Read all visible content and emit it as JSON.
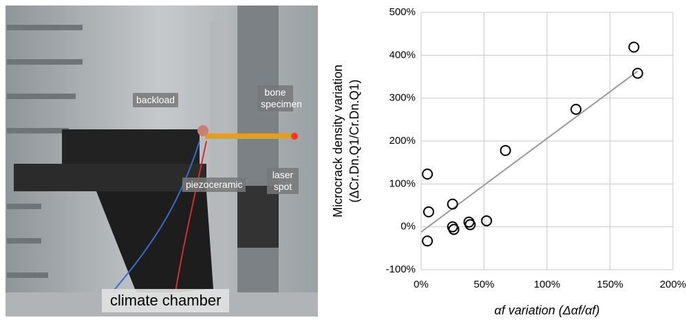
{
  "photo": {
    "labels": [
      "backload",
      "bone specimen",
      "piezoceramic",
      "laser spot",
      "climate chamber"
    ]
  },
  "chart_data": {
    "type": "scatter",
    "x_label": "αf variation (Δαf/αf)",
    "y_label": [
      "Microcrack density variation",
      "(ΔCr.Dn.Q1/Cr.Dn.Q1)"
    ],
    "x": [
      5,
      6,
      25,
      25,
      26,
      5,
      38,
      39,
      52,
      67,
      123,
      169,
      172
    ],
    "values": [
      123,
      35,
      53,
      0,
      -6,
      -33,
      11,
      5,
      14,
      178,
      274,
      419,
      358
    ],
    "color": "#000000",
    "trendline": {
      "x": [
        0,
        172
      ],
      "y": [
        -12,
        363
      ],
      "color": "#999999"
    },
    "xlim": [
      0,
      200
    ],
    "xticks": [
      {
        "value": 0,
        "label": "0%"
      },
      {
        "value": 50,
        "label": "50%"
      },
      {
        "value": 100,
        "label": "100%"
      },
      {
        "value": 150,
        "label": "150%"
      },
      {
        "value": 200,
        "label": "200%"
      }
    ],
    "ylim": [
      -100,
      500
    ],
    "yticks": [
      {
        "value": -100,
        "label": "-100%"
      },
      {
        "value": 0,
        "label": "0%"
      },
      {
        "value": 100,
        "label": "100%"
      },
      {
        "value": 200,
        "label": "200%"
      },
      {
        "value": 300,
        "label": "300%"
      },
      {
        "value": 400,
        "label": "400%"
      },
      {
        "value": 500,
        "label": "500%"
      }
    ],
    "grid": true
  }
}
